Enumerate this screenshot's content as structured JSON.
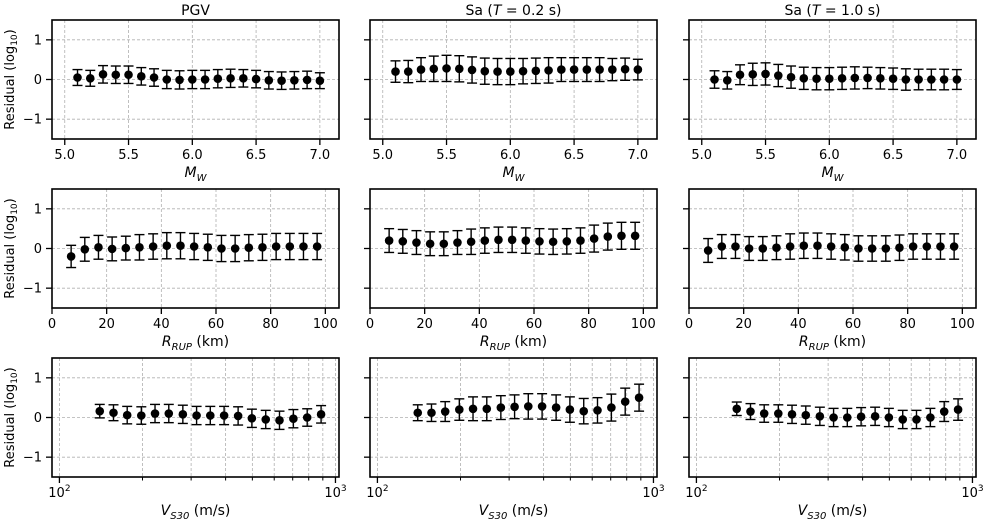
{
  "chart_data": [
    {
      "type": "scatter",
      "title": "PGV",
      "xscale": "linear",
      "x": [
        5.1,
        5.2,
        5.3,
        5.4,
        5.5,
        5.6,
        5.7,
        5.8,
        5.9,
        6.0,
        6.1,
        6.2,
        6.3,
        6.4,
        6.5,
        6.6,
        6.7,
        6.8,
        6.9,
        7.0
      ],
      "y": [
        0.05,
        0.03,
        0.13,
        0.12,
        0.12,
        0.08,
        0.05,
        0.0,
        -0.01,
        0.0,
        0.0,
        0.02,
        0.03,
        0.03,
        0.01,
        -0.02,
        -0.03,
        -0.02,
        -0.01,
        -0.03
      ],
      "yerr": [
        0.2,
        0.2,
        0.22,
        0.22,
        0.22,
        0.22,
        0.22,
        0.23,
        0.23,
        0.23,
        0.23,
        0.23,
        0.23,
        0.22,
        0.22,
        0.22,
        0.22,
        0.22,
        0.22,
        0.2
      ],
      "xlim": [
        4.9,
        7.15
      ],
      "ylim": [
        -1.5,
        1.5
      ],
      "xticks": [
        5.0,
        5.5,
        6.0,
        6.5,
        7.0
      ],
      "xticklabels": [
        "5.0",
        "5.5",
        "6.0",
        "6.5",
        "7.0"
      ],
      "yticks": [
        -1,
        0,
        1
      ],
      "yticklabels": [
        "−1",
        "0",
        "1"
      ],
      "xlabel": "M",
      "xlabel_sub": "W",
      "xlabel_unit": "",
      "ylabel": "Residual (log",
      "ylabel_sub": "10",
      "ylabel_close": ")",
      "grid": true
    },
    {
      "type": "scatter",
      "title": "Sa (",
      "title_italic": "T",
      "title_rest": " = 0.2 s)",
      "xscale": "linear",
      "x": [
        5.1,
        5.2,
        5.3,
        5.4,
        5.5,
        5.6,
        5.7,
        5.8,
        5.9,
        6.0,
        6.1,
        6.2,
        6.3,
        6.4,
        6.5,
        6.6,
        6.7,
        6.8,
        6.9,
        7.0
      ],
      "y": [
        0.2,
        0.2,
        0.25,
        0.27,
        0.28,
        0.27,
        0.24,
        0.21,
        0.2,
        0.2,
        0.21,
        0.22,
        0.23,
        0.25,
        0.25,
        0.25,
        0.25,
        0.25,
        0.26,
        0.25
      ],
      "yerr": [
        0.27,
        0.28,
        0.3,
        0.32,
        0.33,
        0.33,
        0.33,
        0.33,
        0.33,
        0.33,
        0.32,
        0.32,
        0.32,
        0.3,
        0.3,
        0.3,
        0.3,
        0.28,
        0.28,
        0.26
      ],
      "xlim": [
        4.9,
        7.15
      ],
      "ylim": [
        -1.5,
        1.5
      ],
      "xticks": [
        5.0,
        5.5,
        6.0,
        6.5,
        7.0
      ],
      "xticklabels": [
        "5.0",
        "5.5",
        "6.0",
        "6.5",
        "7.0"
      ],
      "yticks": [
        -1,
        0,
        1
      ],
      "yticklabels": [],
      "xlabel": "M",
      "xlabel_sub": "W",
      "xlabel_unit": "",
      "ylabel": "",
      "grid": true
    },
    {
      "type": "scatter",
      "title": "Sa (",
      "title_italic": "T",
      "title_rest": " = 1.0 s)",
      "xscale": "linear",
      "x": [
        5.1,
        5.2,
        5.3,
        5.4,
        5.5,
        5.6,
        5.7,
        5.8,
        5.9,
        6.0,
        6.1,
        6.2,
        6.3,
        6.4,
        6.5,
        6.6,
        6.7,
        6.8,
        6.9,
        7.0
      ],
      "y": [
        0.0,
        -0.02,
        0.12,
        0.13,
        0.14,
        0.1,
        0.06,
        0.03,
        0.02,
        0.02,
        0.03,
        0.04,
        0.04,
        0.03,
        0.02,
        0.0,
        0.0,
        0.0,
        0.0,
        0.0
      ],
      "yerr": [
        0.22,
        0.22,
        0.25,
        0.28,
        0.28,
        0.28,
        0.28,
        0.28,
        0.28,
        0.28,
        0.28,
        0.28,
        0.27,
        0.27,
        0.27,
        0.27,
        0.26,
        0.26,
        0.26,
        0.25
      ],
      "xlim": [
        4.9,
        7.15
      ],
      "ylim": [
        -1.5,
        1.5
      ],
      "xticks": [
        5.0,
        5.5,
        6.0,
        6.5,
        7.0
      ],
      "xticklabels": [
        "5.0",
        "5.5",
        "6.0",
        "6.5",
        "7.0"
      ],
      "yticks": [
        -1,
        0,
        1
      ],
      "yticklabels": [],
      "xlabel": "M",
      "xlabel_sub": "W",
      "xlabel_unit": "",
      "ylabel": "",
      "grid": true
    },
    {
      "type": "scatter",
      "title": "",
      "xscale": "linear",
      "x": [
        7,
        12,
        17,
        22,
        27,
        32,
        37,
        42,
        47,
        52,
        57,
        62,
        67,
        72,
        77,
        82,
        87,
        92,
        97
      ],
      "y": [
        -0.2,
        -0.02,
        0.03,
        -0.01,
        0.01,
        0.03,
        0.05,
        0.07,
        0.07,
        0.05,
        0.03,
        0.0,
        0.0,
        0.02,
        0.03,
        0.05,
        0.05,
        0.05,
        0.05
      ],
      "yerr": [
        0.28,
        0.3,
        0.3,
        0.3,
        0.3,
        0.32,
        0.32,
        0.33,
        0.33,
        0.33,
        0.33,
        0.33,
        0.33,
        0.33,
        0.33,
        0.33,
        0.33,
        0.33,
        0.33
      ],
      "xlim": [
        0,
        105
      ],
      "ylim": [
        -1.5,
        1.5
      ],
      "xticks": [
        0,
        20,
        40,
        60,
        80,
        100
      ],
      "xticklabels": [
        "0",
        "20",
        "40",
        "60",
        "80",
        "100"
      ],
      "yticks": [
        -1,
        0,
        1
      ],
      "yticklabels": [
        "−1",
        "0",
        "1"
      ],
      "xlabel": "R",
      "xlabel_sub": "RUP",
      "xlabel_unit": " (km)",
      "ylabel": "Residual (log",
      "ylabel_sub": "10",
      "ylabel_close": ")",
      "grid": true
    },
    {
      "type": "scatter",
      "title": "",
      "xscale": "linear",
      "x": [
        7,
        12,
        17,
        22,
        27,
        32,
        37,
        42,
        47,
        52,
        57,
        62,
        67,
        72,
        77,
        82,
        87,
        92,
        97
      ],
      "y": [
        0.2,
        0.18,
        0.15,
        0.12,
        0.12,
        0.15,
        0.17,
        0.2,
        0.22,
        0.22,
        0.2,
        0.18,
        0.17,
        0.18,
        0.2,
        0.25,
        0.3,
        0.32,
        0.32
      ],
      "yerr": [
        0.3,
        0.3,
        0.3,
        0.3,
        0.3,
        0.3,
        0.32,
        0.32,
        0.32,
        0.32,
        0.32,
        0.32,
        0.32,
        0.32,
        0.32,
        0.34,
        0.34,
        0.34,
        0.34
      ],
      "xlim": [
        0,
        105
      ],
      "ylim": [
        -1.5,
        1.5
      ],
      "xticks": [
        0,
        20,
        40,
        60,
        80,
        100
      ],
      "xticklabels": [
        "0",
        "20",
        "40",
        "60",
        "80",
        "100"
      ],
      "yticks": [
        -1,
        0,
        1
      ],
      "yticklabels": [],
      "xlabel": "R",
      "xlabel_sub": "RUP",
      "xlabel_unit": " (km)",
      "ylabel": "",
      "grid": true
    },
    {
      "type": "scatter",
      "title": "",
      "xscale": "linear",
      "x": [
        7,
        12,
        17,
        22,
        27,
        32,
        37,
        42,
        47,
        52,
        57,
        62,
        67,
        72,
        77,
        82,
        87,
        92,
        97
      ],
      "y": [
        -0.05,
        0.05,
        0.05,
        0.0,
        0.0,
        0.02,
        0.05,
        0.07,
        0.07,
        0.05,
        0.03,
        0.0,
        0.0,
        0.0,
        0.02,
        0.05,
        0.05,
        0.05,
        0.05
      ],
      "yerr": [
        0.3,
        0.3,
        0.3,
        0.3,
        0.3,
        0.3,
        0.32,
        0.32,
        0.32,
        0.32,
        0.32,
        0.32,
        0.32,
        0.32,
        0.32,
        0.32,
        0.32,
        0.32,
        0.32
      ],
      "xlim": [
        0,
        105
      ],
      "ylim": [
        -1.5,
        1.5
      ],
      "xticks": [
        0,
        20,
        40,
        60,
        80,
        100
      ],
      "xticklabels": [
        "0",
        "20",
        "40",
        "60",
        "80",
        "100"
      ],
      "yticks": [
        -1,
        0,
        1
      ],
      "yticklabels": [],
      "xlabel": "R",
      "xlabel_sub": "RUP",
      "xlabel_unit": " (km)",
      "ylabel": "",
      "grid": true
    },
    {
      "type": "scatter",
      "title": "",
      "xscale": "log",
      "x": [
        140,
        157,
        176,
        198,
        222,
        249,
        280,
        314,
        352,
        395,
        444,
        498,
        559,
        627,
        704,
        790,
        887
      ],
      "y": [
        0.16,
        0.12,
        0.06,
        0.05,
        0.1,
        0.1,
        0.08,
        0.05,
        0.05,
        0.05,
        0.04,
        -0.02,
        -0.05,
        -0.07,
        -0.03,
        0.0,
        0.08
      ],
      "yerr": [
        0.17,
        0.2,
        0.22,
        0.22,
        0.23,
        0.23,
        0.23,
        0.23,
        0.23,
        0.23,
        0.23,
        0.23,
        0.23,
        0.23,
        0.23,
        0.22,
        0.22
      ],
      "xlim": [
        94,
        1030
      ],
      "ylim": [
        -1.5,
        1.5
      ],
      "xticks": [
        100,
        1000
      ],
      "xticklabels": [
        "10",
        "10"
      ],
      "xtick_exp": [
        "2",
        "3"
      ],
      "yticks": [
        -1,
        0,
        1
      ],
      "yticklabels": [
        "−1",
        "0",
        "1"
      ],
      "xlabel": "V",
      "xlabel_sub": "S30",
      "xlabel_unit": " (m/s)",
      "ylabel": "Residual (log",
      "ylabel_sub": "10",
      "ylabel_close": ")",
      "grid": true
    },
    {
      "type": "scatter",
      "title": "",
      "xscale": "log",
      "x": [
        140,
        157,
        176,
        198,
        222,
        249,
        280,
        314,
        352,
        395,
        444,
        498,
        559,
        627,
        704,
        790,
        887
      ],
      "y": [
        0.12,
        0.12,
        0.15,
        0.2,
        0.22,
        0.22,
        0.25,
        0.27,
        0.28,
        0.28,
        0.25,
        0.2,
        0.16,
        0.18,
        0.25,
        0.4,
        0.5
      ],
      "yerr": [
        0.2,
        0.22,
        0.25,
        0.27,
        0.3,
        0.3,
        0.3,
        0.3,
        0.32,
        0.32,
        0.32,
        0.32,
        0.32,
        0.32,
        0.34,
        0.34,
        0.34
      ],
      "xlim": [
        94,
        1030
      ],
      "ylim": [
        -1.5,
        1.5
      ],
      "xticks": [
        100,
        1000
      ],
      "xticklabels": [
        "10",
        "10"
      ],
      "xtick_exp": [
        "2",
        "3"
      ],
      "yticks": [
        -1,
        0,
        1
      ],
      "yticklabels": [],
      "xlabel": "V",
      "xlabel_sub": "S30",
      "xlabel_unit": " (m/s)",
      "ylabel": "",
      "grid": true
    },
    {
      "type": "scatter",
      "title": "",
      "xscale": "log",
      "x": [
        140,
        157,
        176,
        198,
        222,
        249,
        280,
        314,
        352,
        395,
        444,
        498,
        559,
        627,
        704,
        790,
        887
      ],
      "y": [
        0.22,
        0.15,
        0.1,
        0.1,
        0.08,
        0.06,
        0.03,
        0.0,
        0.0,
        0.02,
        0.03,
        0.0,
        -0.05,
        -0.05,
        0.0,
        0.15,
        0.2
      ],
      "yerr": [
        0.17,
        0.2,
        0.22,
        0.22,
        0.23,
        0.23,
        0.23,
        0.23,
        0.23,
        0.23,
        0.23,
        0.23,
        0.23,
        0.23,
        0.23,
        0.25,
        0.27
      ],
      "xlim": [
        94,
        1030
      ],
      "ylim": [
        -1.5,
        1.5
      ],
      "xticks": [
        100,
        1000
      ],
      "xticklabels": [
        "10",
        "10"
      ],
      "xtick_exp": [
        "2",
        "3"
      ],
      "yticks": [
        -1,
        0,
        1
      ],
      "yticklabels": [],
      "xlabel": "V",
      "xlabel_sub": "S30",
      "xlabel_unit": " (m/s)",
      "ylabel": "",
      "grid": true
    }
  ]
}
